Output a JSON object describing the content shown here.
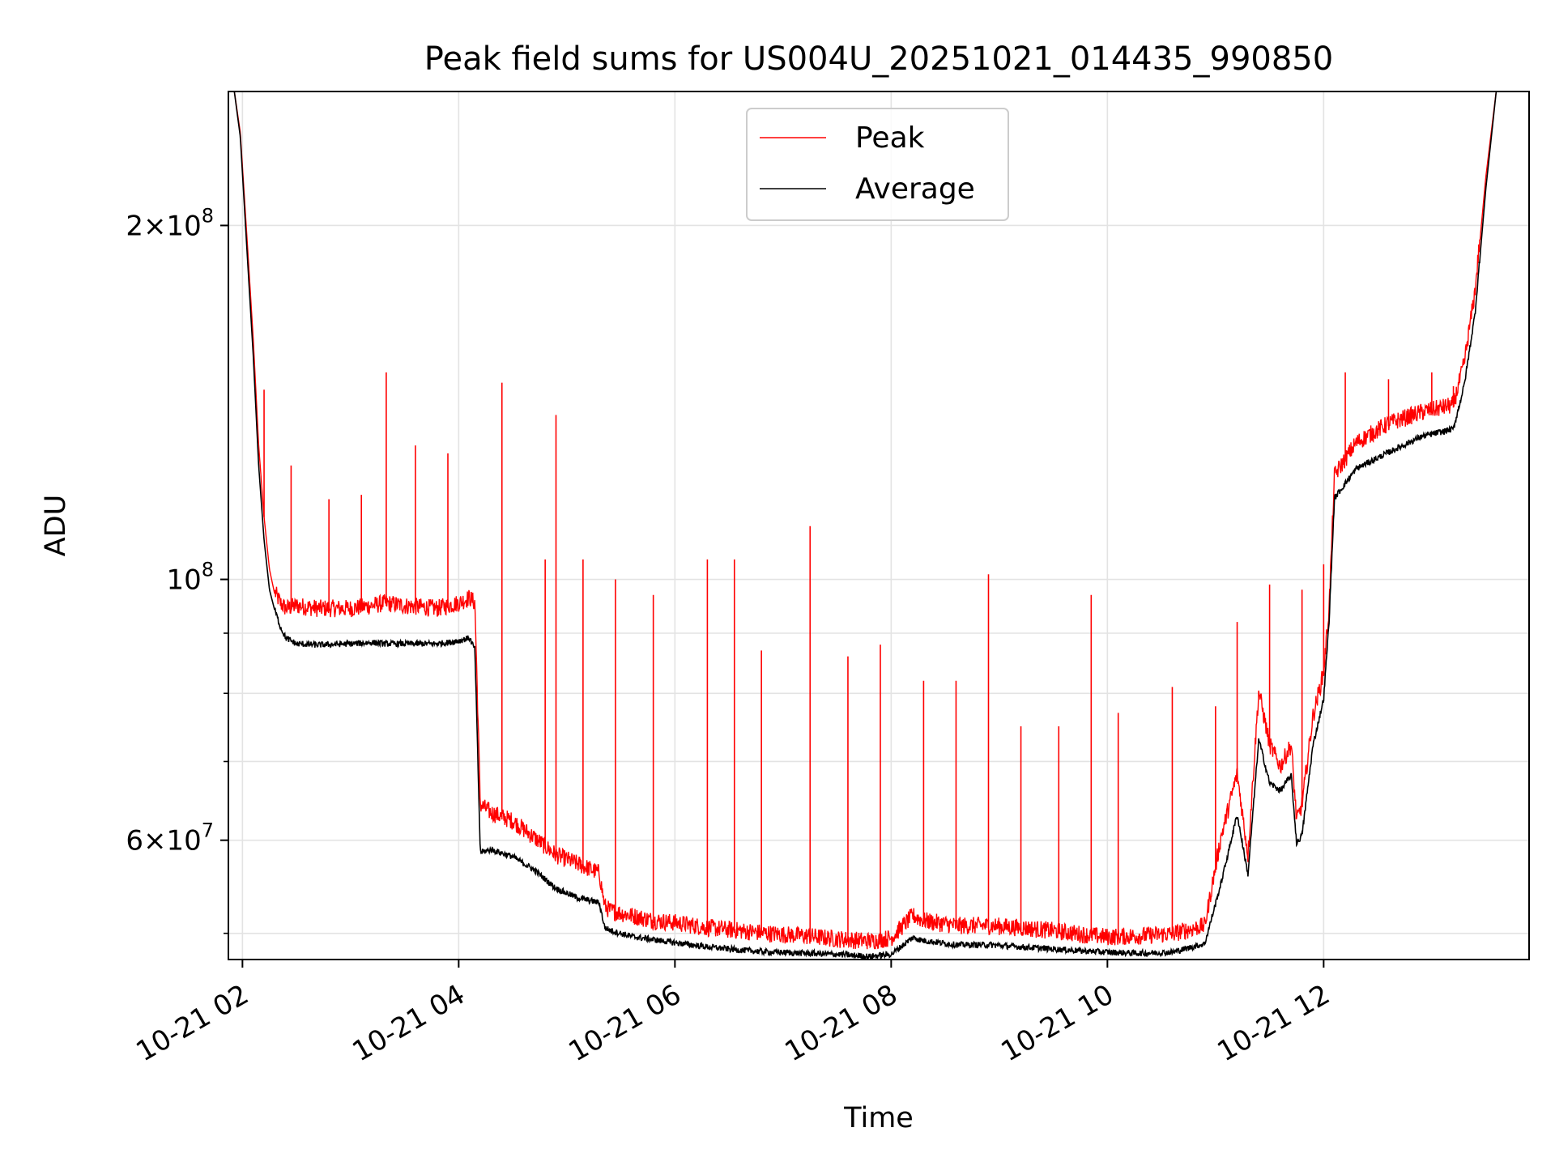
{
  "chart_data": {
    "type": "line",
    "title": "Peak field sums for US004U_20251021_014435_990850",
    "xlabel": "Time",
    "ylabel": "ADU",
    "yscale": "log",
    "xlim": [
      1.87,
      13.9
    ],
    "ylim": [
      47500000.0,
      260000000.0
    ],
    "grid": true,
    "legend_position": "upper-center",
    "x_ticks": [
      {
        "value": 2,
        "label": "10-21 02"
      },
      {
        "value": 4,
        "label": "10-21 04"
      },
      {
        "value": 6,
        "label": "10-21 06"
      },
      {
        "value": 8,
        "label": "10-21 08"
      },
      {
        "value": 10,
        "label": "10-21 10"
      },
      {
        "value": 12,
        "label": "10-21 12"
      }
    ],
    "y_major_ticks": [
      {
        "value": 60000000,
        "base": "6×10",
        "exp": "7"
      },
      {
        "value": 100000000,
        "base": "10",
        "exp": "8"
      },
      {
        "value": 200000000,
        "base": "2×10",
        "exp": "8"
      }
    ],
    "y_minor_ticks": [
      50000000,
      70000000,
      80000000,
      90000000
    ],
    "series": [
      {
        "name": "Peak",
        "color": "#ff0000",
        "x": [
          1.92,
          1.98,
          2.05,
          2.1,
          2.15,
          2.2,
          2.25,
          2.3,
          2.35,
          2.4,
          2.5,
          2.7,
          3.0,
          3.2,
          3.32,
          3.5,
          3.8,
          3.9,
          4.0,
          4.1,
          4.15,
          4.2,
          4.3,
          4.5,
          4.7,
          4.9,
          5.1,
          5.3,
          5.35,
          5.4,
          5.6,
          5.8,
          6.0,
          6.3,
          6.6,
          6.9,
          7.2,
          7.5,
          7.8,
          8.0,
          8.2,
          8.3,
          8.6,
          8.9,
          9.2,
          9.5,
          9.8,
          10.0,
          10.3,
          10.6,
          10.9,
          11.05,
          11.2,
          11.3,
          11.4,
          11.5,
          11.6,
          11.7,
          11.75,
          11.8,
          11.9,
          12.0,
          12.05,
          12.1,
          12.3,
          12.6,
          12.9,
          13.2,
          13.3,
          13.4,
          13.5,
          13.6
        ],
        "y": [
          262000000,
          240000000,
          190000000,
          160000000,
          130000000,
          113000000,
          102000000,
          97000000,
          95000000,
          94000000,
          94500000,
          94000000,
          94000000,
          94500000,
          95000000,
          94500000,
          94000000,
          94500000,
          95000000,
          96000000,
          95000000,
          64000000,
          63000000,
          62000000,
          60000000,
          58000000,
          57000000,
          56000000,
          52500000,
          52000000,
          51500000,
          51000000,
          50800000,
          50300000,
          50000000,
          49700000,
          49500000,
          49200000,
          49000000,
          49300000,
          51500000,
          51000000,
          50500000,
          50500000,
          50300000,
          50000000,
          49600000,
          49400000,
          49500000,
          49700000,
          50500000,
          60000000,
          68000000,
          58000000,
          80000000,
          72000000,
          69000000,
          72000000,
          62000000,
          64000000,
          76000000,
          83000000,
          94000000,
          122000000,
          130000000,
          135000000,
          138000000,
          140000000,
          152000000,
          175000000,
          220000000,
          262000000
        ],
        "spikes": [
          [
            2.2,
            145000000
          ],
          [
            2.45,
            125000000
          ],
          [
            2.8,
            117000000
          ],
          [
            3.1,
            118000000
          ],
          [
            3.33,
            150000000
          ],
          [
            3.6,
            130000000
          ],
          [
            3.9,
            128000000
          ],
          [
            4.4,
            147000000
          ],
          [
            4.8,
            104000000
          ],
          [
            4.9,
            138000000
          ],
          [
            5.15,
            104000000
          ],
          [
            5.45,
            100000000
          ],
          [
            5.8,
            97000000
          ],
          [
            6.3,
            104000000
          ],
          [
            6.55,
            104000000
          ],
          [
            6.8,
            87000000
          ],
          [
            7.25,
            111000000
          ],
          [
            7.6,
            86000000
          ],
          [
            7.9,
            88000000
          ],
          [
            8.3,
            82000000
          ],
          [
            8.6,
            82000000
          ],
          [
            8.9,
            101000000
          ],
          [
            9.2,
            75000000
          ],
          [
            9.55,
            75000000
          ],
          [
            9.85,
            97000000
          ],
          [
            10.1,
            77000000
          ],
          [
            10.6,
            81000000
          ],
          [
            11.0,
            78000000
          ],
          [
            11.2,
            92000000
          ],
          [
            11.5,
            99000000
          ],
          [
            11.8,
            98000000
          ],
          [
            12.0,
            103000000
          ],
          [
            12.2,
            150000000
          ],
          [
            12.6,
            148000000
          ],
          [
            13.0,
            150000000
          ],
          [
            13.2,
            146000000
          ]
        ]
      },
      {
        "name": "Average",
        "color": "#000000",
        "x": [
          1.92,
          1.98,
          2.05,
          2.1,
          2.15,
          2.2,
          2.25,
          2.3,
          2.35,
          2.4,
          2.5,
          2.7,
          3.0,
          3.2,
          3.32,
          3.5,
          3.8,
          3.9,
          4.0,
          4.1,
          4.15,
          4.2,
          4.3,
          4.5,
          4.7,
          4.9,
          5.1,
          5.3,
          5.35,
          5.4,
          5.6,
          5.8,
          6.0,
          6.3,
          6.6,
          6.9,
          7.2,
          7.5,
          7.8,
          8.0,
          8.2,
          8.3,
          8.6,
          8.9,
          9.2,
          9.5,
          9.8,
          10.0,
          10.3,
          10.6,
          10.9,
          11.05,
          11.2,
          11.3,
          11.4,
          11.5,
          11.6,
          11.7,
          11.75,
          11.8,
          11.9,
          12.0,
          12.05,
          12.1,
          12.3,
          12.6,
          12.9,
          13.2,
          13.3,
          13.4,
          13.5,
          13.6
        ],
        "y": [
          262000000,
          238000000,
          185000000,
          155000000,
          125000000,
          108000000,
          98000000,
          94000000,
          91000000,
          89000000,
          88000000,
          87800000,
          88000000,
          88200000,
          88000000,
          88000000,
          88000000,
          88200000,
          88500000,
          89000000,
          87000000,
          58500000,
          58800000,
          58000000,
          56500000,
          54500000,
          53500000,
          53000000,
          50500000,
          50200000,
          49600000,
          49300000,
          49000000,
          48600000,
          48300000,
          48100000,
          48000000,
          47900000,
          47700000,
          47900000,
          49500000,
          49200000,
          48800000,
          48800000,
          48600000,
          48400000,
          48200000,
          48100000,
          48000000,
          48100000,
          48900000,
          55000000,
          63000000,
          56000000,
          73000000,
          67000000,
          66000000,
          68000000,
          59500000,
          60500000,
          72000000,
          79000000,
          92000000,
          117000000,
          124000000,
          128000000,
          132000000,
          134000000,
          146000000,
          168000000,
          215000000,
          262000000
        ]
      }
    ]
  }
}
